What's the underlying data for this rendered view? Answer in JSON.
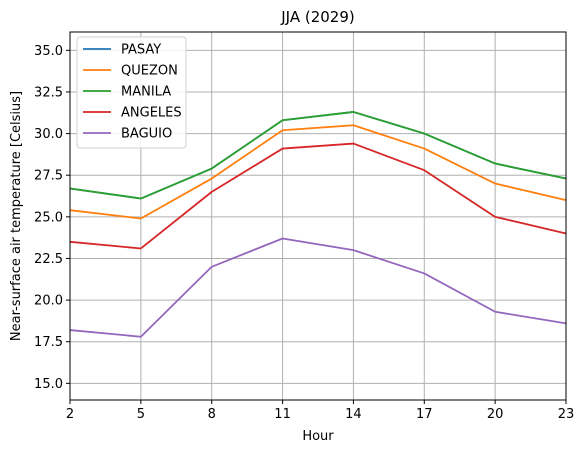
{
  "chart_data": {
    "type": "line",
    "title": "JJA (2029)",
    "xlabel": "Hour",
    "ylabel": "Near-surface air temperature [Celsius]",
    "x": [
      2,
      5,
      8,
      11,
      14,
      17,
      20,
      23
    ],
    "xticks": [
      "2",
      "5",
      "8",
      "11",
      "14",
      "17",
      "20",
      "23"
    ],
    "xlim": [
      2,
      23
    ],
    "ylim": [
      14.0,
      36.1
    ],
    "yticks": [
      "15.0",
      "17.5",
      "20.0",
      "22.5",
      "25.0",
      "27.5",
      "30.0",
      "32.5",
      "35.0"
    ],
    "grid": true,
    "legend_position": "top-left",
    "series": [
      {
        "name": "PASAY",
        "color": "#1f77b4",
        "values": [
          26.7,
          26.1,
          27.9,
          30.8,
          31.3,
          30.0,
          28.2,
          27.3
        ]
      },
      {
        "name": "QUEZON",
        "color": "#ff7f0e",
        "values": [
          25.4,
          24.9,
          27.3,
          30.2,
          30.5,
          29.1,
          27.0,
          26.0
        ]
      },
      {
        "name": "MANILA",
        "color": "#2ca02c",
        "values": [
          26.7,
          26.1,
          27.9,
          30.8,
          31.3,
          30.0,
          28.2,
          27.3
        ]
      },
      {
        "name": "ANGELES",
        "color": "#d62728",
        "values": [
          23.5,
          23.1,
          26.5,
          29.1,
          29.4,
          27.8,
          25.0,
          24.0
        ]
      },
      {
        "name": "BAGUIO",
        "color": "#9467bd",
        "values": [
          18.2,
          17.8,
          22.0,
          23.7,
          23.0,
          21.6,
          19.3,
          18.6
        ]
      }
    ]
  }
}
